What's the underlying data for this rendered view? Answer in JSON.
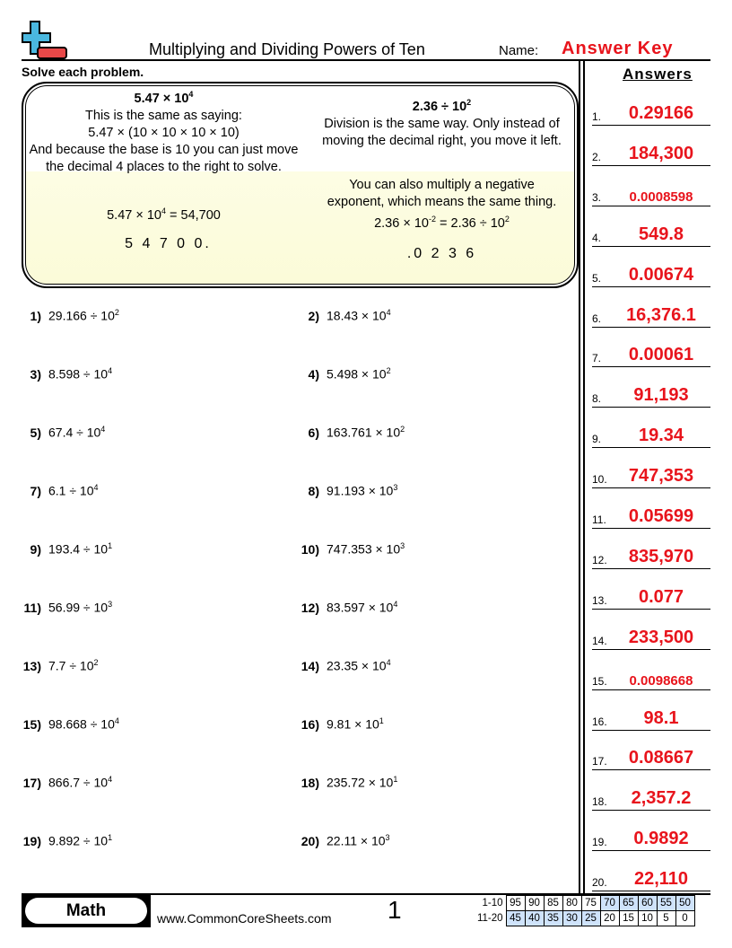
{
  "header": {
    "title": "Multiplying and Dividing Powers of Ten",
    "name_label": "Name:",
    "name_value": "Answer Key",
    "logo": "plus-minus-logo"
  },
  "instructions": "Solve each problem.",
  "answers_heading": "Answers",
  "example": {
    "left": {
      "expr_base": "5.47 × 10",
      "expr_exp": "4",
      "line1": "This is the same as saying:",
      "line2": "5.47 × (10 × 10 × 10 × 10)",
      "line3": "And because the base is 10 you can just move the decimal 4 places to the right to solve.",
      "result_base": "5.47 × 10",
      "result_exp": "4",
      "result_tail": " = 54,700",
      "digits": "5 4 7 0 0."
    },
    "right": {
      "expr_base": "2.36 ÷ 10",
      "expr_exp": "2",
      "line1": "Division is the same way. Only instead of moving the decimal right, you move it left.",
      "line2": "You can also multiply a negative exponent, which means the same thing.",
      "eq_a": "2.36 × 10",
      "eq_a_exp": "-2",
      "eq_b": " = 2.36 ÷ 10",
      "eq_b_exp": "2",
      "digits": ".0 2 3 6"
    }
  },
  "problems": [
    {
      "n": "1)",
      "base": "29.166 ÷ 10",
      "exp": "2"
    },
    {
      "n": "2)",
      "base": "18.43 × 10",
      "exp": "4"
    },
    {
      "n": "3)",
      "base": "8.598 ÷ 10",
      "exp": "4"
    },
    {
      "n": "4)",
      "base": "5.498 × 10",
      "exp": "2"
    },
    {
      "n": "5)",
      "base": "67.4 ÷ 10",
      "exp": "4"
    },
    {
      "n": "6)",
      "base": "163.761 × 10",
      "exp": "2"
    },
    {
      "n": "7)",
      "base": "6.1 ÷ 10",
      "exp": "4"
    },
    {
      "n": "8)",
      "base": "91.193 × 10",
      "exp": "3"
    },
    {
      "n": "9)",
      "base": "193.4 ÷ 10",
      "exp": "1"
    },
    {
      "n": "10)",
      "base": "747.353 × 10",
      "exp": "3"
    },
    {
      "n": "11)",
      "base": "56.99 ÷ 10",
      "exp": "3"
    },
    {
      "n": "12)",
      "base": "83.597 × 10",
      "exp": "4"
    },
    {
      "n": "13)",
      "base": "7.7 ÷ 10",
      "exp": "2"
    },
    {
      "n": "14)",
      "base": "23.35 × 10",
      "exp": "4"
    },
    {
      "n": "15)",
      "base": "98.668 ÷ 10",
      "exp": "4"
    },
    {
      "n": "16)",
      "base": "9.81 × 10",
      "exp": "1"
    },
    {
      "n": "17)",
      "base": "866.7 ÷ 10",
      "exp": "4"
    },
    {
      "n": "18)",
      "base": "235.72 × 10",
      "exp": "1"
    },
    {
      "n": "19)",
      "base": "9.892 ÷ 10",
      "exp": "1"
    },
    {
      "n": "20)",
      "base": "22.11 × 10",
      "exp": "3"
    }
  ],
  "answers": [
    {
      "i": "1.",
      "v": "0.29166"
    },
    {
      "i": "2.",
      "v": "184,300"
    },
    {
      "i": "3.",
      "v": "0.0008598"
    },
    {
      "i": "4.",
      "v": "549.8"
    },
    {
      "i": "5.",
      "v": "0.00674"
    },
    {
      "i": "6.",
      "v": "16,376.1"
    },
    {
      "i": "7.",
      "v": "0.00061"
    },
    {
      "i": "8.",
      "v": "91,193"
    },
    {
      "i": "9.",
      "v": "19.34"
    },
    {
      "i": "10.",
      "v": "747,353"
    },
    {
      "i": "11.",
      "v": "0.05699"
    },
    {
      "i": "12.",
      "v": "835,970"
    },
    {
      "i": "13.",
      "v": "0.077"
    },
    {
      "i": "14.",
      "v": "233,500"
    },
    {
      "i": "15.",
      "v": "0.0098668"
    },
    {
      "i": "16.",
      "v": "98.1"
    },
    {
      "i": "17.",
      "v": "0.08667"
    },
    {
      "i": "18.",
      "v": "2,357.2"
    },
    {
      "i": "19.",
      "v": "0.9892"
    },
    {
      "i": "20.",
      "v": "22,110"
    }
  ],
  "footer": {
    "subject": "Math",
    "site": "www.CommonCoreSheets.com",
    "page": "1",
    "score_rows": [
      {
        "label": "1-10",
        "cells": [
          "95",
          "90",
          "85",
          "80",
          "75",
          "70",
          "65",
          "60",
          "55",
          "50"
        ]
      },
      {
        "label": "11-20",
        "cells": [
          "45",
          "40",
          "35",
          "30",
          "25",
          "20",
          "15",
          "10",
          "5",
          "0"
        ]
      }
    ]
  },
  "colors": {
    "answer": "#e8141c",
    "score_shade": "#cfe3fb",
    "logo_plus": "#4ab8e0",
    "logo_minus": "#e84848"
  }
}
